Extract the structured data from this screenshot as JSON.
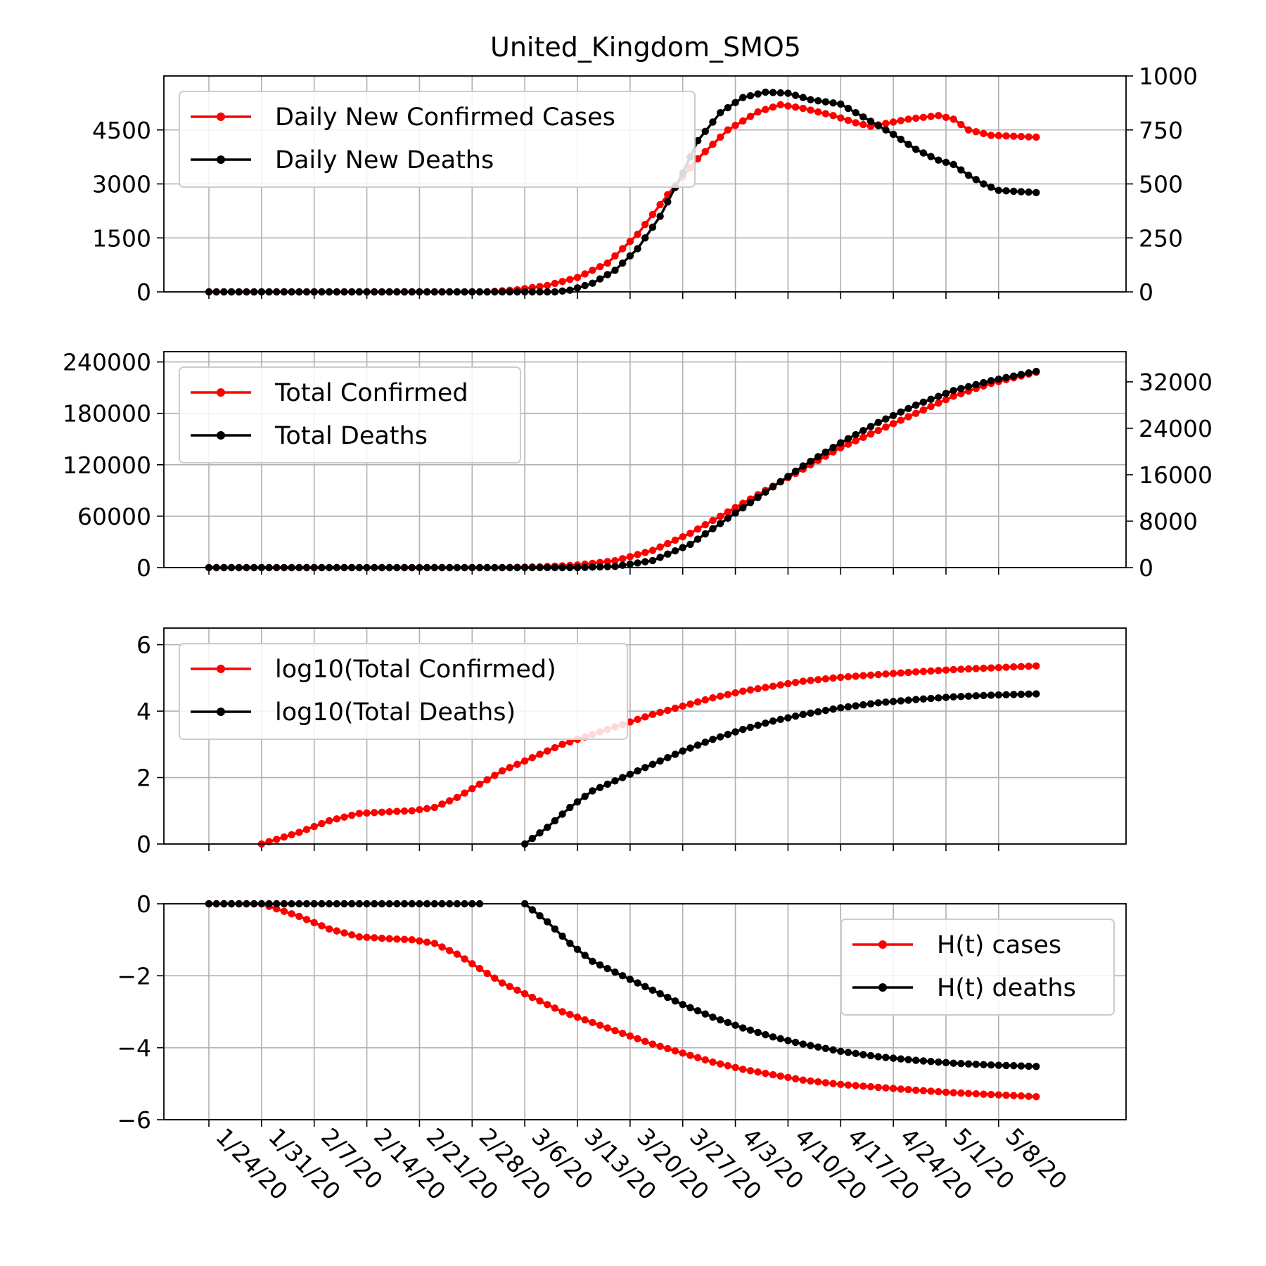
{
  "title": "United_Kingdom_SMO5",
  "colors": {
    "cases": "#ff0000",
    "deaths": "#000000",
    "grid": "#b0b0b0"
  },
  "x_dates": [
    "1/24/20",
    "1/31/20",
    "2/7/20",
    "2/14/20",
    "2/21/20",
    "2/28/20",
    "3/6/20",
    "3/13/20",
    "3/20/20",
    "3/27/20",
    "4/3/20",
    "4/10/20",
    "4/17/20",
    "4/24/20",
    "5/1/20",
    "5/8/20"
  ],
  "chart_data": [
    {
      "type": "line",
      "x_start": "1/24/20",
      "x_end": "5/13/20",
      "n_days": 111,
      "ylim_left": [
        0,
        6000
      ],
      "ylim_right": [
        0,
        1000
      ],
      "yticks_left": [
        0,
        1500,
        3000,
        4500
      ],
      "yticks_right": [
        0,
        250,
        500,
        750,
        1000
      ],
      "legend": "top-left",
      "grid": true,
      "series": [
        {
          "name": "Daily New Confirmed Cases",
          "axis": "left",
          "color": "#ff0000",
          "keypoints": [
            [
              1,
              0
            ],
            [
              38,
              0
            ],
            [
              42,
              60
            ],
            [
              46,
              180
            ],
            [
              50,
              400
            ],
            [
              54,
              800
            ],
            [
              58,
              1600
            ],
            [
              62,
              2700
            ],
            [
              66,
              3700
            ],
            [
              70,
              4500
            ],
            [
              74,
              5000
            ],
            [
              77,
              5200
            ],
            [
              80,
              5100
            ],
            [
              84,
              4900
            ],
            [
              87,
              4700
            ],
            [
              89,
              4600
            ],
            [
              94,
              4800
            ],
            [
              98,
              4900
            ],
            [
              100,
              4800
            ],
            [
              102,
              4500
            ],
            [
              105,
              4350
            ],
            [
              111,
              4300
            ]
          ]
        },
        {
          "name": "Daily New Deaths",
          "axis": "right",
          "color": "#000000",
          "keypoints": [
            [
              1,
              0
            ],
            [
              47,
              0
            ],
            [
              49,
              8
            ],
            [
              52,
              40
            ],
            [
              55,
              100
            ],
            [
              58,
              200
            ],
            [
              61,
              350
            ],
            [
              64,
              550
            ],
            [
              66,
              700
            ],
            [
              69,
              830
            ],
            [
              72,
              900
            ],
            [
              75,
              925
            ],
            [
              78,
              920
            ],
            [
              81,
              890
            ],
            [
              85,
              870
            ],
            [
              88,
              810
            ],
            [
              92,
              730
            ],
            [
              95,
              660
            ],
            [
              98,
              610
            ],
            [
              100,
              590
            ],
            [
              102,
              540
            ],
            [
              104,
              500
            ],
            [
              106,
              470
            ],
            [
              111,
              460
            ]
          ]
        }
      ]
    },
    {
      "type": "line",
      "ylim_left": [
        0,
        252000
      ],
      "ylim_right": [
        0,
        37200
      ],
      "yticks_left": [
        0,
        60000,
        120000,
        180000,
        240000
      ],
      "yticks_right": [
        0,
        8000,
        16000,
        24000,
        32000
      ],
      "legend": "top-left",
      "grid": true,
      "series": [
        {
          "name": "Total Confirmed",
          "axis": "left",
          "color": "#ff0000",
          "keypoints": [
            [
              1,
              0
            ],
            [
              40,
              0
            ],
            [
              45,
              800
            ],
            [
              50,
              3000
            ],
            [
              55,
              8000
            ],
            [
              60,
              20000
            ],
            [
              65,
              40000
            ],
            [
              70,
              65000
            ],
            [
              75,
              90000
            ],
            [
              80,
              115000
            ],
            [
              85,
              140000
            ],
            [
              90,
              160000
            ],
            [
              95,
              180000
            ],
            [
              100,
              200000
            ],
            [
              105,
              215000
            ],
            [
              111,
              228000
            ]
          ]
        },
        {
          "name": "Total Deaths",
          "axis": "right",
          "color": "#000000",
          "keypoints": [
            [
              1,
              0
            ],
            [
              50,
              0
            ],
            [
              55,
              200
            ],
            [
              60,
              1200
            ],
            [
              65,
              4000
            ],
            [
              70,
              8500
            ],
            [
              75,
              13000
            ],
            [
              80,
              17500
            ],
            [
              85,
              21500
            ],
            [
              90,
              25000
            ],
            [
              95,
              28000
            ],
            [
              100,
              30500
            ],
            [
              105,
              32200
            ],
            [
              111,
              33800
            ]
          ]
        }
      ]
    },
    {
      "type": "line",
      "ylim": [
        0,
        6.5
      ],
      "yticks": [
        0,
        2,
        4,
        6
      ],
      "legend": "top-left",
      "grid": true,
      "series": [
        {
          "name": "log10(Total Confirmed)",
          "color": "#ff0000",
          "keypoints": [
            [
              8,
              0
            ],
            [
              13,
              0.35
            ],
            [
              17,
              0.7
            ],
            [
              21,
              0.92
            ],
            [
              25,
              0.97
            ],
            [
              28,
              1.0
            ],
            [
              31,
              1.1
            ],
            [
              34,
              1.4
            ],
            [
              37,
              1.8
            ],
            [
              40,
              2.2
            ],
            [
              44,
              2.6
            ],
            [
              48,
              3.0
            ],
            [
              52,
              3.3
            ],
            [
              56,
              3.6
            ],
            [
              60,
              3.9
            ],
            [
              64,
              4.15
            ],
            [
              68,
              4.4
            ],
            [
              72,
              4.6
            ],
            [
              76,
              4.75
            ],
            [
              80,
              4.9
            ],
            [
              85,
              5.02
            ],
            [
              90,
              5.1
            ],
            [
              95,
              5.18
            ],
            [
              100,
              5.25
            ],
            [
              105,
              5.3
            ],
            [
              111,
              5.36
            ]
          ]
        },
        {
          "name": "log10(Total Deaths)",
          "color": "#000000",
          "keypoints": [
            [
              43,
              0
            ],
            [
              46,
              0.5
            ],
            [
              49,
              1.1
            ],
            [
              52,
              1.6
            ],
            [
              56,
              2.0
            ],
            [
              60,
              2.4
            ],
            [
              64,
              2.8
            ],
            [
              68,
              3.15
            ],
            [
              72,
              3.45
            ],
            [
              76,
              3.7
            ],
            [
              80,
              3.9
            ],
            [
              85,
              4.1
            ],
            [
              90,
              4.25
            ],
            [
              95,
              4.35
            ],
            [
              100,
              4.43
            ],
            [
              105,
              4.48
            ],
            [
              111,
              4.52
            ]
          ]
        }
      ]
    },
    {
      "type": "line",
      "ylim": [
        -6,
        0
      ],
      "yticks": [
        -6,
        -4,
        -2,
        0
      ],
      "ytick_labels": [
        "−6",
        "−4",
        "−2",
        "0"
      ],
      "legend": "top-right",
      "grid": true,
      "series": [
        {
          "name": "H(t) cases",
          "color": "#ff0000",
          "keypoints": [
            [
              1,
              0
            ],
            [
              8,
              0
            ],
            [
              13,
              -0.35
            ],
            [
              17,
              -0.7
            ],
            [
              21,
              -0.92
            ],
            [
              25,
              -0.97
            ],
            [
              28,
              -1.0
            ],
            [
              31,
              -1.1
            ],
            [
              34,
              -1.4
            ],
            [
              37,
              -1.8
            ],
            [
              40,
              -2.2
            ],
            [
              44,
              -2.6
            ],
            [
              48,
              -3.0
            ],
            [
              52,
              -3.3
            ],
            [
              56,
              -3.6
            ],
            [
              60,
              -3.9
            ],
            [
              64,
              -4.15
            ],
            [
              68,
              -4.4
            ],
            [
              72,
              -4.6
            ],
            [
              76,
              -4.75
            ],
            [
              80,
              -4.9
            ],
            [
              85,
              -5.02
            ],
            [
              90,
              -5.1
            ],
            [
              95,
              -5.18
            ],
            [
              100,
              -5.25
            ],
            [
              105,
              -5.3
            ],
            [
              111,
              -5.36
            ]
          ]
        },
        {
          "name": "H(t) deaths",
          "color": "#000000",
          "keypoints": [
            [
              1,
              0
            ],
            [
              37,
              0
            ],
            [
              43,
              0
            ],
            [
              46,
              -0.5
            ],
            [
              49,
              -1.1
            ],
            [
              52,
              -1.6
            ],
            [
              56,
              -2.0
            ],
            [
              60,
              -2.4
            ],
            [
              64,
              -2.8
            ],
            [
              68,
              -3.15
            ],
            [
              72,
              -3.45
            ],
            [
              76,
              -3.7
            ],
            [
              80,
              -3.9
            ],
            [
              85,
              -4.1
            ],
            [
              90,
              -4.25
            ],
            [
              95,
              -4.35
            ],
            [
              100,
              -4.43
            ],
            [
              105,
              -4.48
            ],
            [
              111,
              -4.52
            ]
          ],
          "segments": [
            [
              1,
              37
            ],
            [
              43,
              111
            ]
          ]
        }
      ]
    }
  ]
}
